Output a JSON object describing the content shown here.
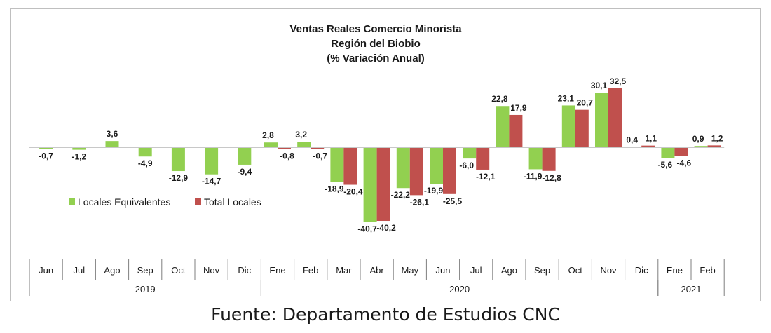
{
  "chart_data": {
    "type": "bar",
    "title": [
      "Ventas Reales Comercio Minorista",
      "Región del Biobio",
      "(% Variación Anual)"
    ],
    "categories": [
      "Jun",
      "Jul",
      "Ago",
      "Sep",
      "Oct",
      "Nov",
      "Dic",
      "Ene",
      "Feb",
      "Mar",
      "Abr",
      "May",
      "Jun",
      "Jul",
      "Ago",
      "Sep",
      "Oct",
      "Nov",
      "Dic",
      "Ene",
      "Feb"
    ],
    "year_groups": [
      {
        "label": "2019",
        "start": 0,
        "end": 6
      },
      {
        "label": "2020",
        "start": 7,
        "end": 18
      },
      {
        "label": "2021",
        "start": 19,
        "end": 20
      }
    ],
    "series": [
      {
        "name": "Locales Equivalentes",
        "color": "#92d050",
        "values": [
          -0.7,
          -1.2,
          3.6,
          -4.9,
          -12.9,
          -14.7,
          -9.4,
          2.8,
          3.2,
          -18.9,
          -40.7,
          -22.2,
          -19.9,
          -6.0,
          22.8,
          -11.9,
          23.1,
          30.1,
          0.4,
          -5.6,
          0.9
        ],
        "labels": [
          "-0,7",
          "-1,2",
          "3,6",
          "-4,9",
          "-12,9",
          "-14,7",
          "-9,4",
          "2,8",
          "3,2",
          "-18,9",
          "-40,7",
          "-22,2",
          "-19,9",
          "-6,0",
          "22,8",
          "-11,9",
          "23,1",
          "30,1",
          "0,4",
          "-5,6",
          "0,9"
        ]
      },
      {
        "name": "Total Locales",
        "color": "#c0504d",
        "values": [
          null,
          null,
          null,
          null,
          null,
          null,
          null,
          -0.8,
          -0.7,
          -20.4,
          -40.2,
          -26.1,
          -25.5,
          -12.1,
          17.9,
          -12.8,
          20.7,
          32.5,
          1.1,
          -4.6,
          1.2
        ],
        "labels": [
          "",
          "",
          "",
          "",
          "",
          "",
          "",
          "-0,8",
          "-0,7",
          "-20,4",
          "-40,2",
          "-26,1",
          "-25,5",
          "-12,1",
          "17,9",
          "-12,8",
          "20,7",
          "32,5",
          "1,1",
          "-4,6",
          "1,2"
        ]
      }
    ],
    "legend_position": "left",
    "grid": false
  },
  "source_text": "Fuente: Departamento de Estudios CNC"
}
